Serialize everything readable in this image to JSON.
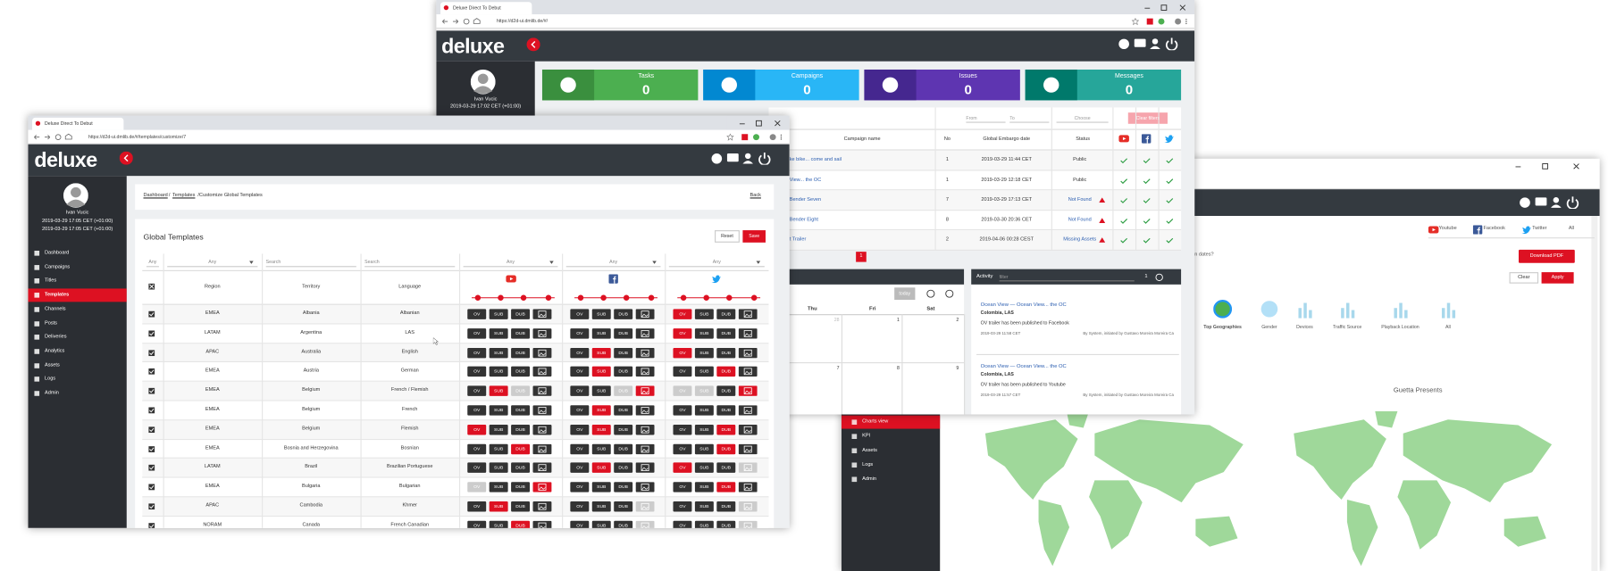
{
  "back_window": {
    "tabs": [
      "Youtube",
      "Facebook",
      "Twitter",
      "All"
    ],
    "question": "n dates?",
    "download": "Download PDF",
    "clear": "Clear",
    "apply": "Apply",
    "metrics": [
      "Top Geographies",
      "Gender",
      "Devices",
      "Traffic Source",
      "Playback Location",
      "All"
    ],
    "map_title": "Guetta Presents",
    "menu": [
      "Charts view",
      "KPI",
      "Assets",
      "Logs",
      "Admin"
    ]
  },
  "dashboard_window": {
    "tab": "Deluxe Direct To Debut",
    "url": "https://d2d-ui.dmlib.de/#/",
    "logo": "deluxe",
    "user_name": "Ivan Vucic",
    "user_time": "2019-03-29 17:02 CET (+01:00)",
    "cards": [
      {
        "label": "Tasks",
        "count": 0,
        "color": "#4caf50",
        "icon_color": "#3a8f3e"
      },
      {
        "label": "Campaigns",
        "count": 0,
        "color": "#29b6f6",
        "icon_color": "#0288d1"
      },
      {
        "label": "Issues",
        "count": 0,
        "color": "#5e35b1",
        "icon_color": "#45278f"
      },
      {
        "label": "Messages",
        "count": 0,
        "color": "#26a69a",
        "icon_color": "#00796b"
      }
    ],
    "filters": [
      "From",
      "To",
      "Choose"
    ],
    "clear_filters": "Clear filters",
    "columns": [
      "Campaign name",
      "No",
      "Global Embargo date",
      "Status"
    ],
    "rows": [
      {
        "name": "ke bike... come and sail",
        "no": 1,
        "date": "2019-03-29 11:44 CET",
        "status": "Public"
      },
      {
        "name": "View... the OC",
        "no": 1,
        "date": "2019-03-29 12:18 CET",
        "status": "Public"
      },
      {
        "name": "Bender Seven",
        "no": 7,
        "date": "2019-03-29 17:13 CET",
        "status": "Not Found"
      },
      {
        "name": "Bender Eight",
        "no": 8,
        "date": "2019-03-30 20:36 CET",
        "status": "Not Found"
      },
      {
        "name": "t Trailer",
        "no": 2,
        "date": "2019-04-06 00:28 CEST",
        "status": "Missing Assets"
      }
    ],
    "page": 1,
    "calendar": {
      "today": "today",
      "days": [
        "Thu",
        "Fri",
        "Sat"
      ],
      "dates": [
        28,
        1,
        2,
        7,
        8,
        9
      ]
    },
    "activity": {
      "title": "Activity",
      "filter": "filter",
      "count": 1,
      "items": [
        {
          "title": "Ocean View — Ocean View... the OC",
          "place": "Colombia, LAS",
          "text": "OV trailer has been published to Facebook",
          "date": "2019-03-29 11:58 CET",
          "by": "By System, initiated by Gustavo Moreira Moreira Ca"
        },
        {
          "title": "Ocean View — Ocean View... the OC",
          "place": "Colombia, LAS",
          "text": "OV trailer has been published to Youtube",
          "date": "2019-03-29 11:57 CET",
          "by": "By System, initiated by Gustavo Moreira Moreira Ca"
        }
      ]
    }
  },
  "templates_window": {
    "tab": "Deluxe Direct To Debut",
    "url": "https://d2d-ui.dmlib.de/#/templates/customize/7",
    "logo": "deluxe",
    "user_name": "Ivan Vucic",
    "user_time": [
      "2019-03-29 17:05 CET (+01:00)",
      "2019-03-29 17:05 CET (+01:00)"
    ],
    "menu": [
      "Dashboard",
      "Campaigns",
      "Titles",
      "Templates",
      "Channels",
      "Posts",
      "Deliveries",
      "Analytics",
      "Assets",
      "Logs",
      "Admin"
    ],
    "active_menu": 3,
    "breadcrumb": [
      "Dashboard",
      "/",
      "Templates",
      "/Customize Global Templates"
    ],
    "back": "Back",
    "title": "Global Templates",
    "reset": "Reset",
    "save": "Save",
    "filters": [
      "Any",
      "Any",
      "Search",
      "Search",
      "Any",
      "Any",
      "Any"
    ],
    "headers": [
      "Region",
      "Territory",
      "Language"
    ],
    "button_labels": [
      "OV",
      "SUB",
      "DUB"
    ],
    "rows": [
      {
        "region": "EMEA",
        "territory": "Albania",
        "language": "Albanian",
        "colors": [
          "#333",
          "#333",
          "#333",
          "#333",
          "#333",
          "#333",
          "#333",
          "#333",
          "#d12",
          "#333",
          "#333",
          "#333"
        ]
      },
      {
        "region": "LATAM",
        "territory": "Argentina",
        "language": "LAS",
        "colors": [
          "#333",
          "#333",
          "#333",
          "#333",
          "#333",
          "#333",
          "#333",
          "#333",
          "#d12",
          "#333",
          "#333",
          "#333"
        ]
      },
      {
        "region": "APAC",
        "territory": "Australia",
        "language": "English",
        "colors": [
          "#333",
          "#333",
          "#333",
          "#333",
          "#333",
          "#d12",
          "#333",
          "#333",
          "#d12",
          "#333",
          "#333",
          "#333"
        ]
      },
      {
        "region": "EMEA",
        "territory": "Austria",
        "language": "German",
        "colors": [
          "#333",
          "#333",
          "#333",
          "#333",
          "#333",
          "#d12",
          "#333",
          "#333",
          "#333",
          "#333",
          "#d12",
          "#333"
        ]
      },
      {
        "region": "EMEA",
        "territory": "Belgium",
        "language": "French / Flemish",
        "colors": [
          "#333",
          "#d12",
          "#ccc",
          "#333",
          "#333",
          "#333",
          "#ccc",
          "#d12",
          "#ccc",
          "#ccc",
          "#333",
          "#d12"
        ]
      },
      {
        "region": "EMEA",
        "territory": "Belgium",
        "language": "French",
        "colors": [
          "#333",
          "#333",
          "#333",
          "#333",
          "#333",
          "#d12",
          "#333",
          "#333",
          "#333",
          "#333",
          "#333",
          "#333"
        ]
      },
      {
        "region": "EMEA",
        "territory": "Belgium",
        "language": "Flemish",
        "colors": [
          "#d12",
          "#333",
          "#333",
          "#333",
          "#333",
          "#d12",
          "#333",
          "#333",
          "#333",
          "#333",
          "#d12",
          "#333"
        ]
      },
      {
        "region": "EMEA",
        "territory": "Bosnia and Herzegovina",
        "language": "Bosnian",
        "colors": [
          "#333",
          "#333",
          "#d12",
          "#333",
          "#333",
          "#333",
          "#333",
          "#333",
          "#333",
          "#333",
          "#d12",
          "#333"
        ]
      },
      {
        "region": "LATAM",
        "territory": "Brazil",
        "language": "Brazilian Portuguese",
        "colors": [
          "#333",
          "#333",
          "#333",
          "#333",
          "#333",
          "#d12",
          "#333",
          "#333",
          "#d12",
          "#333",
          "#333",
          "#ccc"
        ]
      },
      {
        "region": "EMEA",
        "territory": "Bulgaria",
        "language": "Bulgarian",
        "colors": [
          "#ccc",
          "#333",
          "#333",
          "#d12",
          "#333",
          "#333",
          "#333",
          "#333",
          "#333",
          "#333",
          "#d12",
          "#333"
        ]
      },
      {
        "region": "APAC",
        "territory": "Cambodia",
        "language": "Khmer",
        "colors": [
          "#333",
          "#d12",
          "#333",
          "#333",
          "#333",
          "#333",
          "#333",
          "#ccc",
          "#333",
          "#333",
          "#333",
          "#ccc"
        ]
      },
      {
        "region": "NORAM",
        "territory": "Canada",
        "language": "French Canadian",
        "colors": [
          "#333",
          "#333",
          "#d12",
          "#333",
          "#333",
          "#333",
          "#333",
          "#ccc",
          "#333",
          "#333",
          "#333",
          "#ccc"
        ]
      }
    ]
  }
}
